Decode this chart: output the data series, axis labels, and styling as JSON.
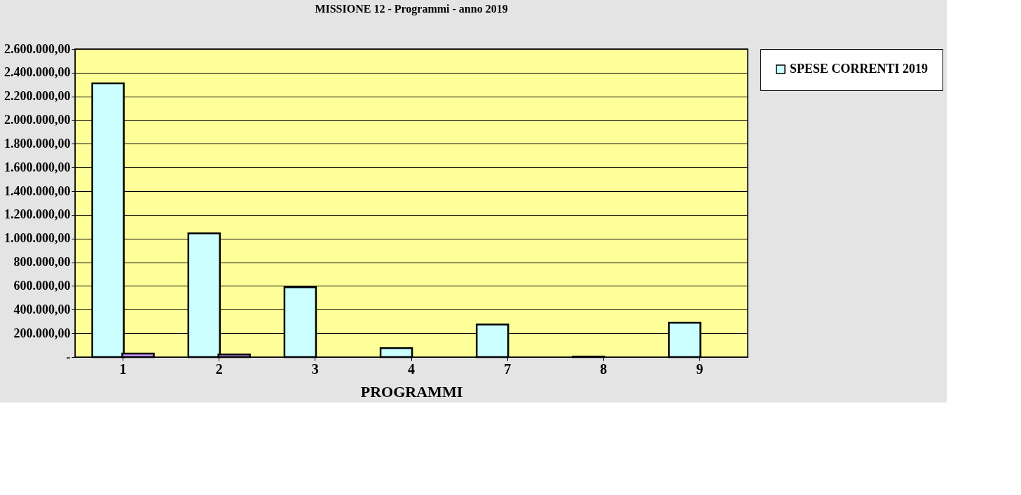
{
  "chart_data": {
    "type": "bar",
    "title": "MISSIONE 12 - Programmi  - anno 2019",
    "xlabel": "PROGRAMMI",
    "categories": [
      "1",
      "2",
      "3",
      "4",
      "7",
      "8",
      "9"
    ],
    "series": [
      {
        "name": "SPESE CORRENTI 2019",
        "color": "#ccffff",
        "values": [
          2310000,
          1045000,
          590000,
          75000,
          275000,
          5000,
          290000
        ]
      },
      {
        "color": "#cc99ff",
        "values": [
          30000,
          22000,
          null,
          null,
          null,
          null,
          null
        ]
      }
    ],
    "ylim": [
      0,
      2600000
    ],
    "yticks": [
      {
        "value": 0,
        "label": "-"
      },
      {
        "value": 200000,
        "label": "200.000,00"
      },
      {
        "value": 400000,
        "label": "400.000,00"
      },
      {
        "value": 600000,
        "label": "600.000,00"
      },
      {
        "value": 800000,
        "label": "800.000,00"
      },
      {
        "value": 1000000,
        "label": "1.000.000,00"
      },
      {
        "value": 1200000,
        "label": "1.200.000,00"
      },
      {
        "value": 1400000,
        "label": "1.400.000,00"
      },
      {
        "value": 1600000,
        "label": "1.600.000,00"
      },
      {
        "value": 1800000,
        "label": "1.800.000,00"
      },
      {
        "value": 2000000,
        "label": "2.000.000,00"
      },
      {
        "value": 2200000,
        "label": "2.200.000,00"
      },
      {
        "value": 2400000,
        "label": "2.400.000,00"
      },
      {
        "value": 2600000,
        "label": "2.600.000,00"
      }
    ],
    "grid": "y",
    "legend": "right"
  }
}
